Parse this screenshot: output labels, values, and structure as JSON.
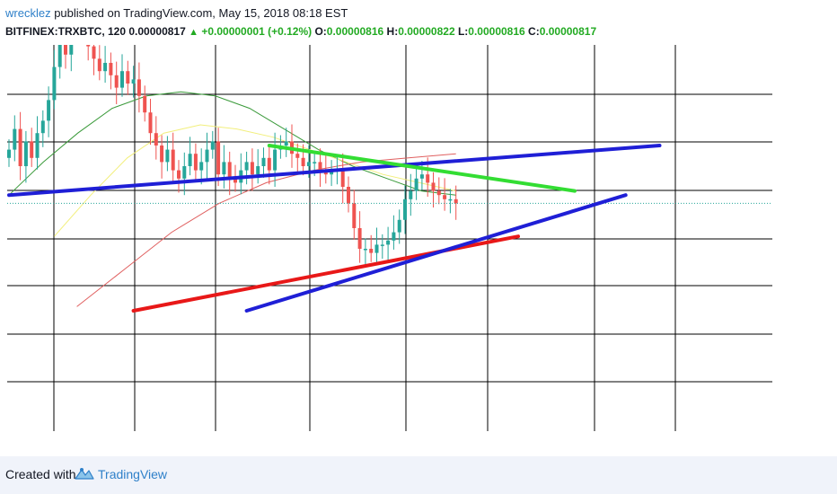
{
  "header": {
    "author": "wrecklez",
    "published": "published on TradingView.com, May 15, 2018 08:18 EST",
    "symbol": "BITFINEX:TRXBTC, 120",
    "price": "0.00000817",
    "change": "+0.00000001 (+0.12%)",
    "o_label": "O:",
    "o": "0.00000816",
    "h_label": "H:",
    "h": "0.00000822",
    "l_label": "L:",
    "l": "0.00000816",
    "c_label": "C:",
    "c": "0.00000817"
  },
  "footer": {
    "created_with": "Created with",
    "brand": "TradingView"
  },
  "colors": {
    "up": "#26a69a",
    "down": "#ef5350",
    "positive_text": "#22aa22",
    "link": "#2f80c9",
    "trend_blue": "#1f1fd6",
    "trend_green": "#33dd33",
    "trend_red": "#e81818",
    "ma_green": "#3a9a3a",
    "ma_yellow": "#f2ef7c",
    "ma_red": "#e06060"
  },
  "chart_data": {
    "type": "candlestick",
    "title": "BITFINEX:TRXBTC, 120",
    "price_axis": "hidden",
    "grid": true,
    "closes": [
      7.9,
      8.4,
      7.5,
      8.1,
      7.7,
      8.3,
      8.6,
      9.1,
      9.9,
      10.6,
      10.2,
      10.9,
      11.3,
      11.0,
      10.4,
      10.1,
      9.8,
      10.0,
      9.7,
      9.4,
      9.8,
      9.5,
      9.6,
      9.2,
      8.8,
      8.3,
      8.0,
      7.6,
      7.9,
      7.4,
      7.2,
      7.5,
      7.8,
      7.4,
      7.6,
      7.9,
      8.1,
      7.3,
      7.6,
      7.2,
      7.1,
      7.4,
      7.6,
      7.3,
      7.5,
      7.7,
      7.4,
      7.9,
      8.0,
      8.1,
      7.8,
      7.7,
      7.5,
      7.6,
      7.6,
      7.4,
      7.3,
      7.4,
      7.4,
      7.0,
      6.6,
      6.0,
      5.5,
      5.5,
      5.4,
      5.6,
      5.6,
      5.7,
      5.9,
      6.2,
      6.7,
      6.9,
      7.2,
      7.3,
      7.1,
      6.9,
      6.8,
      6.7,
      6.7,
      6.6
    ],
    "series": [
      {
        "name": "",
        "color": "green",
        "values": [
          6.8,
          7.6,
          8.3,
          8.9,
          9.2,
          9.3,
          9.2,
          8.9,
          8.4,
          7.9,
          7.5,
          7.2,
          6.9,
          6.8
        ]
      },
      {
        "name": "",
        "color": "yellow",
        "values": [
          5.8,
          6.8,
          7.7,
          8.3,
          8.5,
          8.4,
          8.2,
          7.9,
          7.6,
          7.3,
          7.1,
          6.9
        ]
      },
      {
        "name": "",
        "color": "red",
        "values": [
          4.1,
          5.0,
          5.9,
          6.6,
          7.1,
          7.4,
          7.6,
          7.7,
          7.8
        ]
      }
    ],
    "trendlines": [
      {
        "color": "blue",
        "x0": 0,
        "y0": 6.8,
        "x1": 115,
        "y1": 8.0
      },
      {
        "color": "green",
        "x0": 46,
        "y0": 8.0,
        "x1": 100,
        "y1": 6.9
      },
      {
        "color": "red",
        "x0": 22,
        "y0": 4.0,
        "x1": 90,
        "y1": 5.8
      },
      {
        "color": "blue",
        "x0": 42,
        "y0": 4.0,
        "x1": 109,
        "y1": 6.8
      }
    ],
    "last_price": 6.6
  }
}
